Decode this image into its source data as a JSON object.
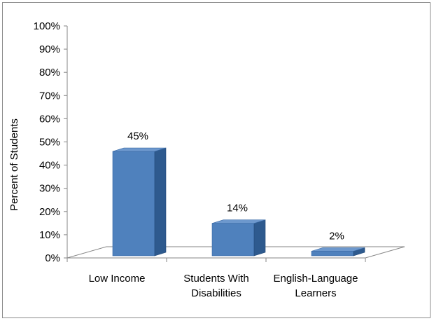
{
  "chart_data": {
    "type": "bar",
    "title": "",
    "xlabel": "",
    "ylabel": "Percent of Students",
    "ylim": [
      0,
      100
    ],
    "y_ticks": [
      "0%",
      "10%",
      "20%",
      "30%",
      "40%",
      "50%",
      "60%",
      "70%",
      "80%",
      "90%",
      "100%"
    ],
    "categories": [
      "Low Income",
      "Students With Disabilities",
      "English-Language Learners"
    ],
    "category_lines": [
      [
        "Low Income"
      ],
      [
        "Students With",
        "Disabilities"
      ],
      [
        "English-Language",
        "Learners"
      ]
    ],
    "values": [
      45,
      14,
      2
    ],
    "data_labels": [
      "45%",
      "14%",
      "2%"
    ],
    "grid": false,
    "legend": "none",
    "bar_color": "#4f81bd",
    "bar_side_color": "#2e5a8e",
    "bar_top_color": "#6d98cd"
  }
}
